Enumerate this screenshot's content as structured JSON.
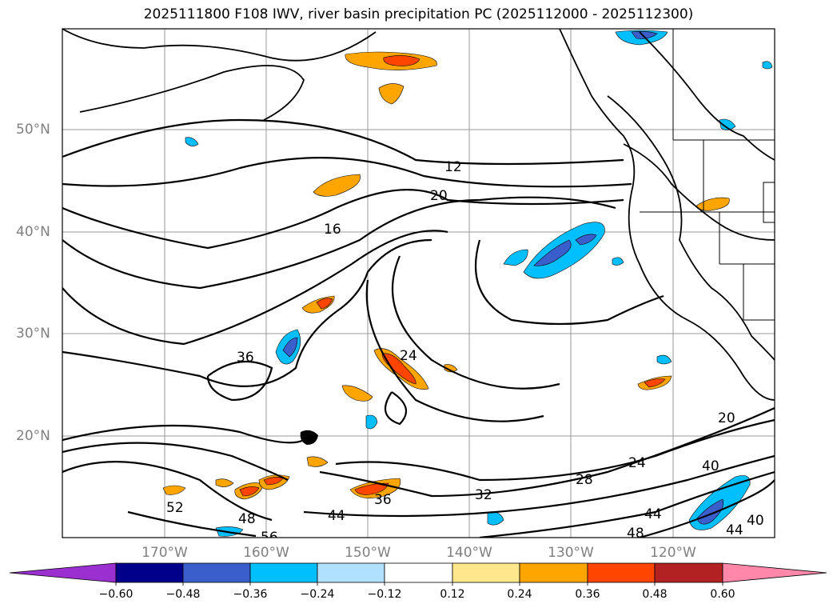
{
  "title": "2025111800 F108 IWV, river basin precipitation PC (2025112000 - 2025112300)",
  "lat_labels": [
    "50°N",
    "40°N",
    "30°N",
    "20°N"
  ],
  "lon_labels": [
    "170°W",
    "160°W",
    "150°W",
    "140°W",
    "130°W",
    "120°W"
  ],
  "contour_labels": [
    "12",
    "20",
    "16",
    "36",
    "24",
    "20",
    "24",
    "28",
    "32",
    "36",
    "44",
    "48",
    "52",
    "56",
    "40",
    "44",
    "48",
    "44",
    "40"
  ],
  "colorbar": {
    "tick_labels": [
      "−0.60",
      "−0.48",
      "−0.36",
      "−0.24",
      "−0.12",
      "0.12",
      "0.24",
      "0.36",
      "0.48",
      "0.60"
    ],
    "colors": [
      "#9b30d0",
      "#00008b",
      "#3a5fcd",
      "#00bfff",
      "#b0e2ff",
      "#ffffff",
      "#ffe88c",
      "#ffa500",
      "#ff4500",
      "#b22222",
      "#ff88aa"
    ]
  }
}
